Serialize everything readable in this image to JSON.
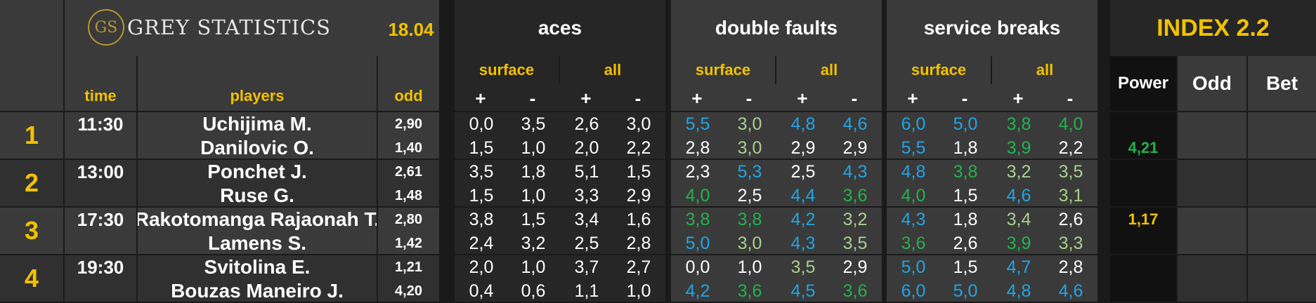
{
  "header": {
    "brand": "GREY STATISTICS",
    "brand_monogram": "GS",
    "date": "18.04",
    "index_title": "INDEX 2.2",
    "groups": [
      "aces",
      "double faults",
      "service breaks"
    ],
    "sub_surface": "surface",
    "sub_all": "all",
    "plus": "+",
    "minus": "-",
    "col_time": "time",
    "col_players": "players",
    "col_odd": "odd",
    "col_power": "Power",
    "col_odd2": "Odd",
    "col_bet": "Bet"
  },
  "colors": {
    "accent_yellow": "#f2c200",
    "stat_blue": "#1fa5e6",
    "stat_green": "#22b24c",
    "stat_lightgreen": "#a8d08d",
    "logo_gold": "#b8952f"
  },
  "matches": [
    {
      "rank": "1",
      "time": "11:30",
      "power": "4,21",
      "power_color": "green",
      "players": [
        {
          "name": "Uchijima M.",
          "odd": "2,90",
          "stats": [
            [
              "0,0",
              "w"
            ],
            [
              "3,5",
              "w"
            ],
            [
              "2,6",
              "w"
            ],
            [
              "3,0",
              "w"
            ],
            [
              "5,5",
              "b"
            ],
            [
              "3,0",
              "l"
            ],
            [
              "4,8",
              "b"
            ],
            [
              "4,6",
              "b"
            ],
            [
              "6,0",
              "b"
            ],
            [
              "5,0",
              "b"
            ],
            [
              "3,8",
              "g"
            ],
            [
              "4,0",
              "g"
            ]
          ]
        },
        {
          "name": "Danilovic O.",
          "odd": "1,40",
          "stats": [
            [
              "1,5",
              "w"
            ],
            [
              "1,0",
              "w"
            ],
            [
              "2,0",
              "w"
            ],
            [
              "2,2",
              "w"
            ],
            [
              "2,8",
              "w"
            ],
            [
              "3,0",
              "l"
            ],
            [
              "2,9",
              "w"
            ],
            [
              "2,9",
              "w"
            ],
            [
              "5,5",
              "b"
            ],
            [
              "1,8",
              "w"
            ],
            [
              "3,9",
              "g"
            ],
            [
              "2,2",
              "w"
            ]
          ]
        }
      ]
    },
    {
      "rank": "2",
      "time": "13:00",
      "power": "",
      "power_color": "green",
      "players": [
        {
          "name": "Ponchet J.",
          "odd": "2,61",
          "stats": [
            [
              "3,5",
              "w"
            ],
            [
              "1,8",
              "w"
            ],
            [
              "5,1",
              "w"
            ],
            [
              "1,5",
              "w"
            ],
            [
              "2,3",
              "w"
            ],
            [
              "5,3",
              "b"
            ],
            [
              "2,5",
              "w"
            ],
            [
              "4,3",
              "b"
            ],
            [
              "4,8",
              "b"
            ],
            [
              "3,8",
              "g"
            ],
            [
              "3,2",
              "l"
            ],
            [
              "3,5",
              "l"
            ]
          ]
        },
        {
          "name": "Ruse G.",
          "odd": "1,48",
          "stats": [
            [
              "1,5",
              "w"
            ],
            [
              "1,0",
              "w"
            ],
            [
              "3,3",
              "w"
            ],
            [
              "2,9",
              "w"
            ],
            [
              "4,0",
              "g"
            ],
            [
              "2,5",
              "w"
            ],
            [
              "4,4",
              "b"
            ],
            [
              "3,6",
              "g"
            ],
            [
              "4,0",
              "g"
            ],
            [
              "1,5",
              "w"
            ],
            [
              "4,6",
              "b"
            ],
            [
              "3,1",
              "l"
            ]
          ]
        }
      ]
    },
    {
      "rank": "3",
      "time": "17:30",
      "power": "1,17",
      "power_color": "yellow",
      "players": [
        {
          "name": "Rakotomanga Rajaonah T.",
          "odd": "2,80",
          "stats": [
            [
              "3,8",
              "w"
            ],
            [
              "1,5",
              "w"
            ],
            [
              "3,4",
              "w"
            ],
            [
              "1,6",
              "w"
            ],
            [
              "3,8",
              "g"
            ],
            [
              "3,8",
              "g"
            ],
            [
              "4,2",
              "b"
            ],
            [
              "3,2",
              "l"
            ],
            [
              "4,3",
              "b"
            ],
            [
              "1,8",
              "w"
            ],
            [
              "3,4",
              "l"
            ],
            [
              "2,6",
              "w"
            ]
          ]
        },
        {
          "name": "Lamens S.",
          "odd": "1,42",
          "stats": [
            [
              "2,4",
              "w"
            ],
            [
              "3,2",
              "w"
            ],
            [
              "2,5",
              "w"
            ],
            [
              "2,8",
              "w"
            ],
            [
              "5,0",
              "b"
            ],
            [
              "3,0",
              "l"
            ],
            [
              "4,3",
              "b"
            ],
            [
              "3,5",
              "l"
            ],
            [
              "3,6",
              "g"
            ],
            [
              "2,6",
              "w"
            ],
            [
              "3,9",
              "g"
            ],
            [
              "3,3",
              "l"
            ]
          ]
        }
      ]
    },
    {
      "rank": "4",
      "time": "19:30",
      "power": "",
      "power_color": "green",
      "players": [
        {
          "name": "Svitolina E.",
          "odd": "1,21",
          "stats": [
            [
              "2,0",
              "w"
            ],
            [
              "1,0",
              "w"
            ],
            [
              "3,7",
              "w"
            ],
            [
              "2,7",
              "w"
            ],
            [
              "0,0",
              "w"
            ],
            [
              "1,0",
              "w"
            ],
            [
              "3,5",
              "l"
            ],
            [
              "2,9",
              "w"
            ],
            [
              "5,0",
              "b"
            ],
            [
              "1,5",
              "w"
            ],
            [
              "4,7",
              "b"
            ],
            [
              "2,8",
              "w"
            ]
          ]
        },
        {
          "name": "Bouzas Maneiro J.",
          "odd": "4,20",
          "stats": [
            [
              "0,4",
              "w"
            ],
            [
              "0,6",
              "w"
            ],
            [
              "1,1",
              "w"
            ],
            [
              "1,0",
              "w"
            ],
            [
              "4,2",
              "b"
            ],
            [
              "3,6",
              "g"
            ],
            [
              "4,5",
              "b"
            ],
            [
              "3,6",
              "g"
            ],
            [
              "6,0",
              "b"
            ],
            [
              "5,0",
              "b"
            ],
            [
              "4,8",
              "b"
            ],
            [
              "4,6",
              "b"
            ]
          ]
        }
      ]
    }
  ]
}
